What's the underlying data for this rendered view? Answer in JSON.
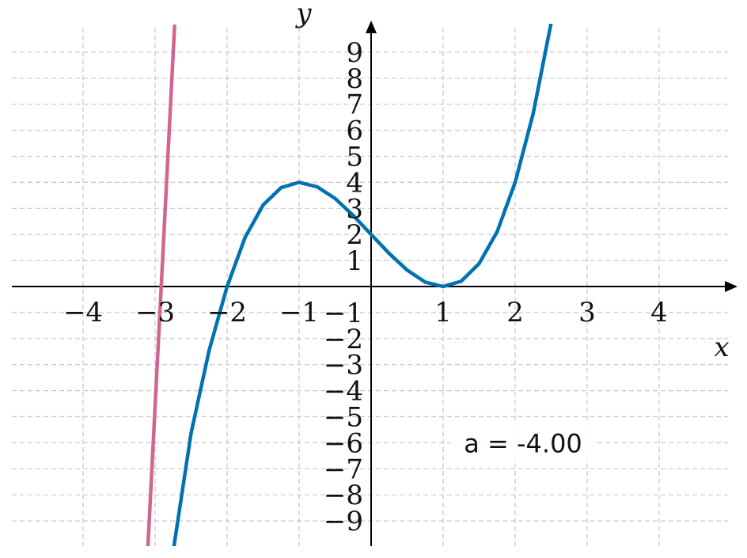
{
  "chart_data": {
    "type": "line",
    "xlabel": "x",
    "ylabel": "y",
    "xlim": [
      -5.1,
      5.0
    ],
    "ylim": [
      -10,
      10
    ],
    "grid": true,
    "x_ticks": [
      -4,
      -3,
      -2,
      -1,
      1,
      2,
      3,
      4
    ],
    "y_ticks": [
      9,
      8,
      7,
      6,
      5,
      4,
      3,
      2,
      1,
      -1,
      -2,
      -3,
      -4,
      -5,
      -6,
      -7,
      -8,
      -9
    ],
    "series": [
      {
        "color": "#0072b2",
        "x": [
          -2.74,
          -2.5,
          -2.25,
          -2.0,
          -1.75,
          -1.5,
          -1.25,
          -1.0,
          -0.75,
          -0.5,
          -0.25,
          0.0,
          0.25,
          0.5,
          0.75,
          1.0,
          1.25,
          1.5,
          1.75,
          2.0,
          2.25,
          2.5
        ],
        "y": [
          -10.0,
          -5.63,
          -2.45,
          0.0,
          1.89,
          3.13,
          3.8,
          4.0,
          3.83,
          3.38,
          2.73,
          2.0,
          1.27,
          0.63,
          0.17,
          0.0,
          0.2,
          0.88,
          2.11,
          4.0,
          6.64,
          10.13
        ]
      },
      {
        "color": "#d16592",
        "x": [
          -3.1,
          -2.73
        ],
        "y": [
          -10.0,
          10.0
        ]
      }
    ],
    "annotation": {
      "text": "a = -4.00",
      "x": 2.0,
      "y": -6.0
    }
  }
}
